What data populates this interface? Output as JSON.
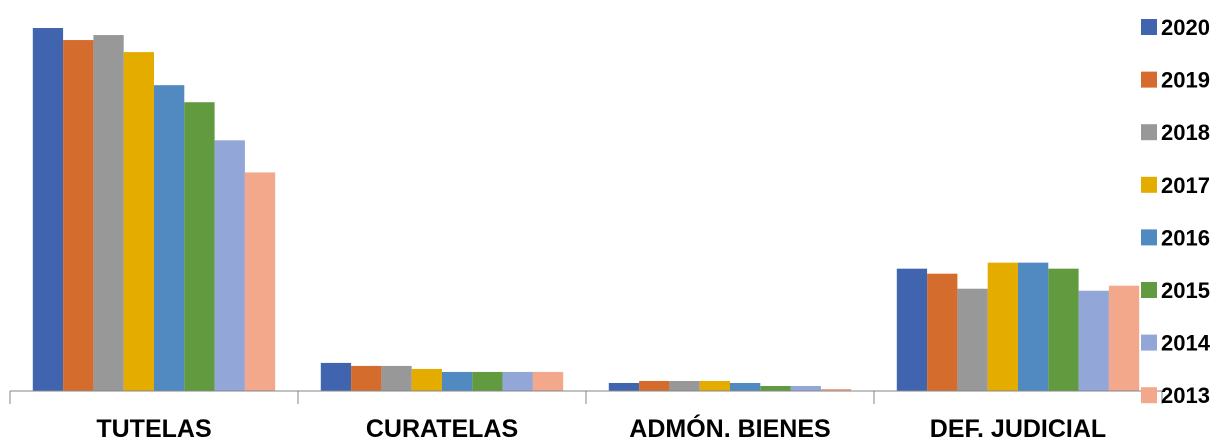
{
  "chart_data": {
    "type": "bar",
    "categories": [
      "TUTELAS",
      "CURATELAS",
      "ADMÓN. BIENES",
      "DEF. JUDICIAL"
    ],
    "series": [
      {
        "name": "2020",
        "color": "#4064AE",
        "values": [
          362,
          28,
          8,
          122
        ]
      },
      {
        "name": "2019",
        "color": "#D46C2E",
        "values": [
          350,
          25,
          10,
          117
        ]
      },
      {
        "name": "2018",
        "color": "#989898",
        "values": [
          355,
          25,
          10,
          102
        ]
      },
      {
        "name": "2017",
        "color": "#E5AC00",
        "values": [
          338,
          22,
          10,
          128
        ]
      },
      {
        "name": "2016",
        "color": "#5189C1",
        "values": [
          305,
          19,
          8,
          128
        ]
      },
      {
        "name": "2015",
        "color": "#629A40",
        "values": [
          288,
          19,
          5,
          122
        ]
      },
      {
        "name": "2014",
        "color": "#92A6D7",
        "values": [
          250,
          19,
          5,
          100
        ]
      },
      {
        "name": "2013",
        "color": "#F3A88C",
        "values": [
          218,
          19,
          2,
          105
        ]
      }
    ],
    "ylim": [
      0,
      370
    ],
    "legend_position": "right",
    "grid": false
  }
}
